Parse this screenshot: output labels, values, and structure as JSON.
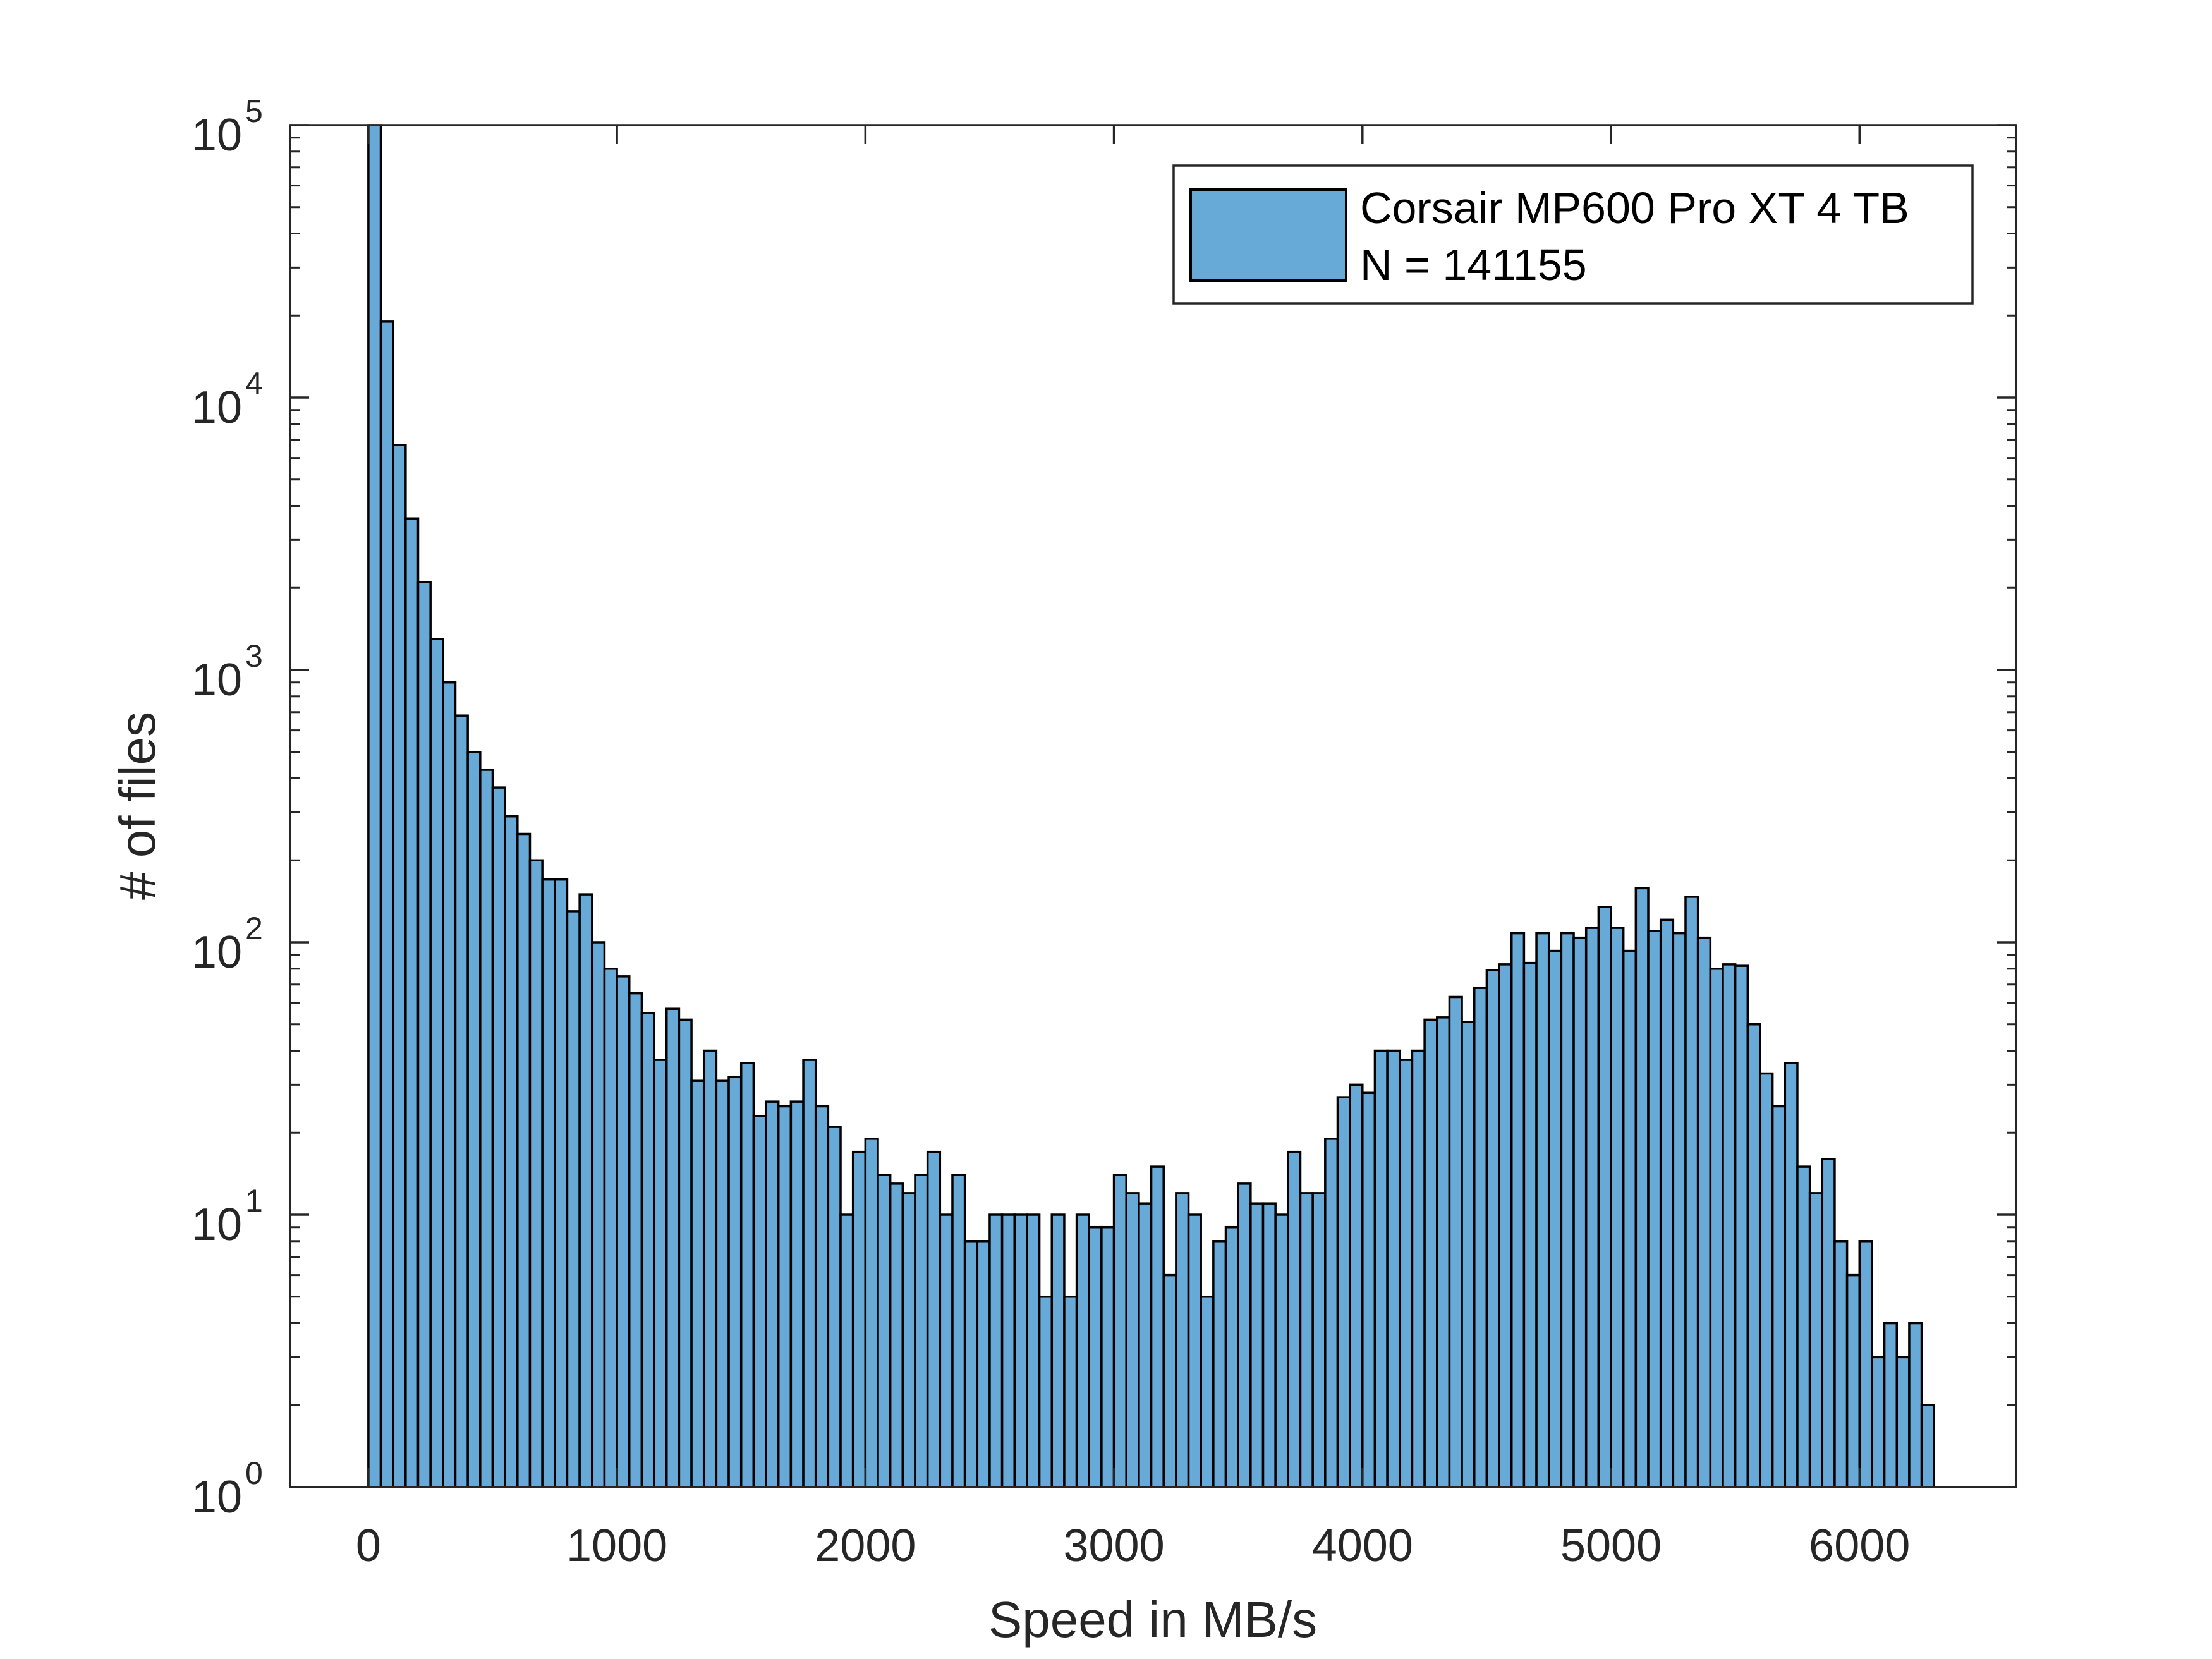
{
  "chart_data": {
    "type": "bar",
    "subtype": "histogram",
    "title": "",
    "xlabel": "Speed in MB/s",
    "ylabel": "# of files",
    "xscale": "linear",
    "yscale": "log",
    "xlim": [
      -315,
      6630
    ],
    "ylim": [
      1,
      100000
    ],
    "xticks": [
      0,
      1000,
      2000,
      3000,
      4000,
      5000,
      6000
    ],
    "xtick_labels": [
      "0",
      "1000",
      "2000",
      "3000",
      "4000",
      "5000",
      "6000"
    ],
    "yticks": [
      1,
      10,
      100,
      1000,
      10000,
      100000
    ],
    "ytick_labels": [
      {
        "base": "10",
        "exp": "0"
      },
      {
        "base": "10",
        "exp": "1"
      },
      {
        "base": "10",
        "exp": "2"
      },
      {
        "base": "10",
        "exp": "3"
      },
      {
        "base": "10",
        "exp": "4"
      },
      {
        "base": "10",
        "exp": "5"
      }
    ],
    "grid": false,
    "legend_position": "upper right",
    "bin_width": 50,
    "bin_start": 0,
    "series": [
      {
        "name": "Corsair MP600 Pro XT 4 TB",
        "annotation": "N = 141155",
        "color": "#67a9d7",
        "edge_color": "#000000",
        "values": [
          100000,
          19000,
          6700,
          3600,
          2100,
          1300,
          900,
          680,
          500,
          430,
          370,
          290,
          250,
          200,
          170,
          170,
          130,
          150,
          100,
          80,
          75,
          65,
          55,
          37,
          57,
          52,
          31,
          40,
          31,
          32,
          36,
          23,
          26,
          25,
          26,
          37,
          25,
          21,
          10,
          17,
          19,
          14,
          13,
          12,
          14,
          17,
          10,
          14,
          8,
          8,
          10,
          10,
          10,
          10,
          5,
          10,
          5,
          10,
          9,
          9,
          14,
          12,
          11,
          15,
          6,
          12,
          10,
          5,
          8,
          9,
          13,
          11,
          11,
          10,
          17,
          12,
          12,
          19,
          27,
          30,
          28,
          40,
          40,
          37,
          40,
          52,
          53,
          63,
          51,
          68,
          79,
          83,
          108,
          84,
          108,
          93,
          108,
          104,
          113,
          135,
          113,
          93,
          158,
          110,
          121,
          108,
          147,
          104,
          80,
          83,
          82,
          50,
          33,
          25,
          36,
          15,
          12,
          16,
          8,
          6,
          8,
          3,
          4,
          3,
          4,
          2
        ]
      }
    ]
  },
  "legend": {
    "label": "Corsair MP600 Pro XT 4 TB",
    "count": "N = 141155"
  },
  "axes": {
    "xlabel": "Speed in MB/s",
    "ylabel": "# of files"
  }
}
